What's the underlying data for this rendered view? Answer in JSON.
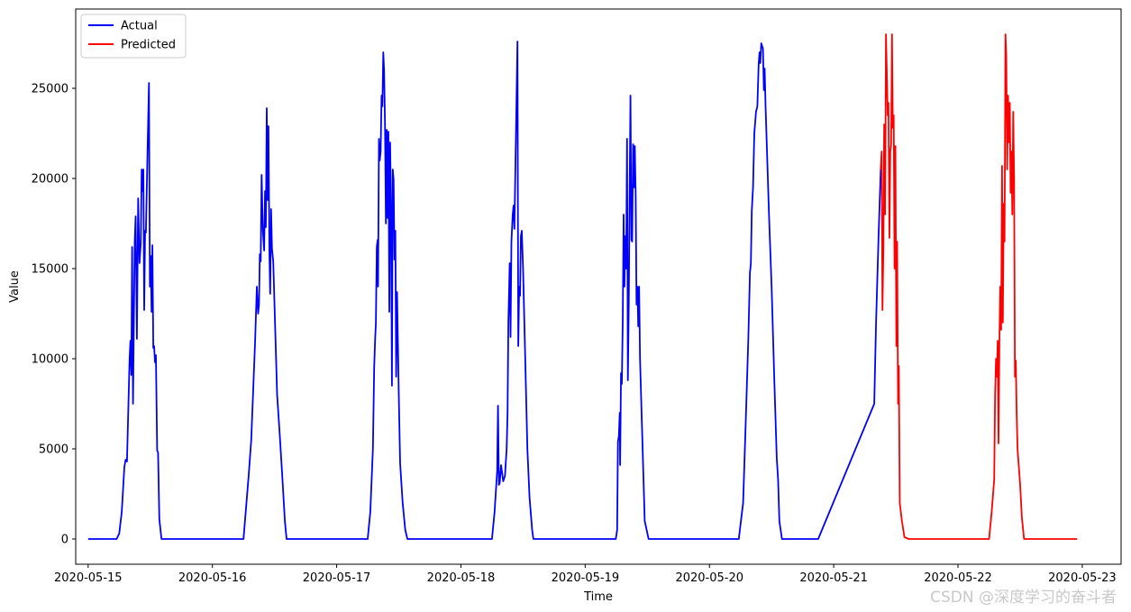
{
  "chart_data": {
    "type": "line",
    "xlabel": "Time",
    "ylabel": "Value",
    "x_ticks": [
      "2020-05-15",
      "2020-05-16",
      "2020-05-17",
      "2020-05-18",
      "2020-05-19",
      "2020-05-20",
      "2020-05-21",
      "2020-05-22",
      "2020-05-23"
    ],
    "y_ticks": [
      0,
      5000,
      10000,
      15000,
      20000,
      25000
    ],
    "xlim": [
      "2020-05-14T21:36",
      "2020-05-23T07:30"
    ],
    "ylim": [
      -1400,
      29400
    ],
    "grid": false,
    "legend": "top-left",
    "series": [
      {
        "name": "Actual",
        "color": "#0000ff",
        "points": [
          [
            "2020-05-15T00:00",
            0
          ],
          [
            "2020-05-15T05:30",
            0
          ],
          [
            "2020-05-15T06:00",
            300
          ],
          [
            "2020-05-15T06:30",
            1500
          ],
          [
            "2020-05-15T07:00",
            4000
          ],
          [
            "2020-05-15T07:15",
            4400
          ],
          [
            "2020-05-15T07:30",
            4300
          ],
          [
            "2020-05-15T08:00",
            10000
          ],
          [
            "2020-05-15T08:10",
            11000
          ],
          [
            "2020-05-15T08:20",
            9100
          ],
          [
            "2020-05-15T08:30",
            16200
          ],
          [
            "2020-05-15T08:40",
            7500
          ],
          [
            "2020-05-15T08:50",
            12000
          ],
          [
            "2020-05-15T09:00",
            16500
          ],
          [
            "2020-05-15T09:10",
            17900
          ],
          [
            "2020-05-15T09:25",
            11100
          ],
          [
            "2020-05-15T09:40",
            18900
          ],
          [
            "2020-05-15T09:55",
            15300
          ],
          [
            "2020-05-15T10:10",
            16400
          ],
          [
            "2020-05-15T10:20",
            20500
          ],
          [
            "2020-05-15T10:30",
            19300
          ],
          [
            "2020-05-15T10:40",
            20500
          ],
          [
            "2020-05-15T10:50",
            12700
          ],
          [
            "2020-05-15T11:00",
            17100
          ],
          [
            "2020-05-15T11:10",
            17000
          ],
          [
            "2020-05-15T11:30",
            22000
          ],
          [
            "2020-05-15T11:45",
            25300
          ],
          [
            "2020-05-15T11:55",
            14000
          ],
          [
            "2020-05-15T12:05",
            15700
          ],
          [
            "2020-05-15T12:15",
            12600
          ],
          [
            "2020-05-15T12:25",
            16300
          ],
          [
            "2020-05-15T12:35",
            10600
          ],
          [
            "2020-05-15T12:45",
            10700
          ],
          [
            "2020-05-15T12:55",
            9800
          ],
          [
            "2020-05-15T13:05",
            10200
          ],
          [
            "2020-05-15T13:20",
            4900
          ],
          [
            "2020-05-15T13:30",
            4800
          ],
          [
            "2020-05-15T13:45",
            1100
          ],
          [
            "2020-05-15T14:10",
            0
          ],
          [
            "2020-05-16T06:00",
            0
          ],
          [
            "2020-05-16T07:00",
            3500
          ],
          [
            "2020-05-16T07:30",
            5500
          ],
          [
            "2020-05-16T08:15",
            11000
          ],
          [
            "2020-05-16T08:35",
            14000
          ],
          [
            "2020-05-16T08:50",
            12500
          ],
          [
            "2020-05-16T09:00",
            13000
          ],
          [
            "2020-05-16T09:10",
            15800
          ],
          [
            "2020-05-16T09:20",
            15400
          ],
          [
            "2020-05-16T09:30",
            20200
          ],
          [
            "2020-05-16T09:45",
            17100
          ],
          [
            "2020-05-16T10:00",
            16000
          ],
          [
            "2020-05-16T10:10",
            19300
          ],
          [
            "2020-05-16T10:20",
            17300
          ],
          [
            "2020-05-16T10:30",
            23900
          ],
          [
            "2020-05-16T10:40",
            18800
          ],
          [
            "2020-05-16T10:50",
            22900
          ],
          [
            "2020-05-16T11:00",
            16000
          ],
          [
            "2020-05-16T11:10",
            13600
          ],
          [
            "2020-05-16T11:20",
            18300
          ],
          [
            "2020-05-16T11:30",
            16100
          ],
          [
            "2020-05-16T11:45",
            15400
          ],
          [
            "2020-05-16T12:30",
            8000
          ],
          [
            "2020-05-16T13:00",
            5800
          ],
          [
            "2020-05-16T13:30",
            3500
          ],
          [
            "2020-05-16T14:00",
            1000
          ],
          [
            "2020-05-16T14:20",
            0
          ],
          [
            "2020-05-17T06:00",
            0
          ],
          [
            "2020-05-17T06:30",
            1500
          ],
          [
            "2020-05-17T07:00",
            5000
          ],
          [
            "2020-05-17T07:15",
            9500
          ],
          [
            "2020-05-17T07:25",
            11000
          ],
          [
            "2020-05-17T07:35",
            12000
          ],
          [
            "2020-05-17T07:45",
            16200
          ],
          [
            "2020-05-17T07:55",
            16600
          ],
          [
            "2020-05-17T08:00",
            14000
          ],
          [
            "2020-05-17T08:10",
            22200
          ],
          [
            "2020-05-17T08:20",
            21000
          ],
          [
            "2020-05-17T08:30",
            21500
          ],
          [
            "2020-05-17T08:40",
            24600
          ],
          [
            "2020-05-17T08:50",
            24000
          ],
          [
            "2020-05-17T09:00",
            27000
          ],
          [
            "2020-05-17T09:10",
            26000
          ],
          [
            "2020-05-17T09:20",
            23000
          ],
          [
            "2020-05-17T09:30",
            17500
          ],
          [
            "2020-05-17T09:40",
            22700
          ],
          [
            "2020-05-17T09:50",
            17800
          ],
          [
            "2020-05-17T10:00",
            22600
          ],
          [
            "2020-05-17T10:10",
            12600
          ],
          [
            "2020-05-17T10:20",
            22000
          ],
          [
            "2020-05-17T10:30",
            18300
          ],
          [
            "2020-05-17T10:40",
            8500
          ],
          [
            "2020-05-17T10:50",
            20500
          ],
          [
            "2020-05-17T11:00",
            19900
          ],
          [
            "2020-05-17T11:10",
            15500
          ],
          [
            "2020-05-17T11:20",
            17100
          ],
          [
            "2020-05-17T11:30",
            9000
          ],
          [
            "2020-05-17T11:40",
            13700
          ],
          [
            "2020-05-17T12:00",
            8000
          ],
          [
            "2020-05-17T12:15",
            4200
          ],
          [
            "2020-05-17T12:45",
            2000
          ],
          [
            "2020-05-17T13:15",
            500
          ],
          [
            "2020-05-17T13:40",
            0
          ],
          [
            "2020-05-18T06:00",
            0
          ],
          [
            "2020-05-18T06:30",
            1500
          ],
          [
            "2020-05-18T07:00",
            3800
          ],
          [
            "2020-05-18T07:10",
            7400
          ],
          [
            "2020-05-18T07:20",
            3000
          ],
          [
            "2020-05-18T07:30",
            3100
          ],
          [
            "2020-05-18T07:45",
            4100
          ],
          [
            "2020-05-18T08:10",
            3200
          ],
          [
            "2020-05-18T08:30",
            3500
          ],
          [
            "2020-05-18T08:50",
            5000
          ],
          [
            "2020-05-18T09:00",
            7000
          ],
          [
            "2020-05-18T09:10",
            12000
          ],
          [
            "2020-05-18T09:25",
            15300
          ],
          [
            "2020-05-18T09:35",
            11200
          ],
          [
            "2020-05-18T09:45",
            16500
          ],
          [
            "2020-05-18T10:00",
            18000
          ],
          [
            "2020-05-18T10:10",
            18500
          ],
          [
            "2020-05-18T10:20",
            17200
          ],
          [
            "2020-05-18T10:40",
            23000
          ],
          [
            "2020-05-18T10:55",
            27600
          ],
          [
            "2020-05-18T11:05",
            10700
          ],
          [
            "2020-05-18T11:15",
            14000
          ],
          [
            "2020-05-18T11:25",
            13500
          ],
          [
            "2020-05-18T11:35",
            16800
          ],
          [
            "2020-05-18T11:45",
            17100
          ],
          [
            "2020-05-18T12:00",
            15000
          ],
          [
            "2020-05-18T12:30",
            9000
          ],
          [
            "2020-05-18T12:50",
            5000
          ],
          [
            "2020-05-18T13:15",
            2300
          ],
          [
            "2020-05-18T13:45",
            500
          ],
          [
            "2020-05-18T14:00",
            0
          ],
          [
            "2020-05-19T05:55",
            0
          ],
          [
            "2020-05-19T06:10",
            500
          ],
          [
            "2020-05-19T06:20",
            5400
          ],
          [
            "2020-05-19T06:30",
            5700
          ],
          [
            "2020-05-19T06:40",
            7000
          ],
          [
            "2020-05-19T06:45",
            4100
          ],
          [
            "2020-05-19T06:55",
            9200
          ],
          [
            "2020-05-19T07:05",
            8600
          ],
          [
            "2020-05-19T07:15",
            12000
          ],
          [
            "2020-05-19T07:25",
            18000
          ],
          [
            "2020-05-19T07:35",
            14000
          ],
          [
            "2020-05-19T07:45",
            16800
          ],
          [
            "2020-05-19T07:55",
            15000
          ],
          [
            "2020-05-19T08:05",
            22200
          ],
          [
            "2020-05-19T08:15",
            8800
          ],
          [
            "2020-05-19T08:25",
            13000
          ],
          [
            "2020-05-19T08:35",
            19500
          ],
          [
            "2020-05-19T08:45",
            24600
          ],
          [
            "2020-05-19T08:55",
            16600
          ],
          [
            "2020-05-19T09:05",
            16500
          ],
          [
            "2020-05-19T09:15",
            21900
          ],
          [
            "2020-05-19T09:25",
            19500
          ],
          [
            "2020-05-19T09:35",
            21800
          ],
          [
            "2020-05-19T09:45",
            19000
          ],
          [
            "2020-05-19T09:55",
            13000
          ],
          [
            "2020-05-19T10:05",
            14000
          ],
          [
            "2020-05-19T10:15",
            11800
          ],
          [
            "2020-05-19T10:25",
            14000
          ],
          [
            "2020-05-19T10:35",
            10000
          ],
          [
            "2020-05-19T11:00",
            6000
          ],
          [
            "2020-05-19T11:30",
            1000
          ],
          [
            "2020-05-19T12:15",
            0
          ],
          [
            "2020-05-20T05:40",
            0
          ],
          [
            "2020-05-20T06:00",
            800
          ],
          [
            "2020-05-20T06:30",
            2000
          ],
          [
            "2020-05-20T07:00",
            6500
          ],
          [
            "2020-05-20T07:30",
            11000
          ],
          [
            "2020-05-20T07:50",
            14800
          ],
          [
            "2020-05-20T08:00",
            15300
          ],
          [
            "2020-05-20T08:10",
            18200
          ],
          [
            "2020-05-20T08:25",
            19500
          ],
          [
            "2020-05-20T08:40",
            22500
          ],
          [
            "2020-05-20T09:00",
            23700
          ],
          [
            "2020-05-20T09:15",
            24000
          ],
          [
            "2020-05-20T09:30",
            26300
          ],
          [
            "2020-05-20T09:40",
            27000
          ],
          [
            "2020-05-20T09:50",
            26400
          ],
          [
            "2020-05-20T10:00",
            27500
          ],
          [
            "2020-05-20T10:20",
            27200
          ],
          [
            "2020-05-20T10:30",
            24900
          ],
          [
            "2020-05-20T10:40",
            26100
          ],
          [
            "2020-05-20T10:50",
            24000
          ],
          [
            "2020-05-20T11:30",
            18000
          ],
          [
            "2020-05-20T12:00",
            14000
          ],
          [
            "2020-05-20T12:30",
            9000
          ],
          [
            "2020-05-20T13:00",
            4500
          ],
          [
            "2020-05-20T13:15",
            3300
          ],
          [
            "2020-05-20T13:30",
            1000
          ],
          [
            "2020-05-20T14:00",
            0
          ],
          [
            "2020-05-20T21:00",
            0
          ],
          [
            "2020-05-21T07:50",
            7500
          ],
          [
            "2020-05-21T08:10",
            12000
          ],
          [
            "2020-05-21T08:40",
            16800
          ],
          [
            "2020-05-21T09:05",
            20500
          ]
        ]
      },
      {
        "name": "Predicted",
        "color": "#ff0000",
        "points": [
          [
            "2020-05-21T09:05",
            20500
          ],
          [
            "2020-05-21T09:15",
            21500
          ],
          [
            "2020-05-21T09:25",
            12700
          ],
          [
            "2020-05-21T09:35",
            16000
          ],
          [
            "2020-05-21T09:45",
            23000
          ],
          [
            "2020-05-21T09:55",
            18000
          ],
          [
            "2020-05-21T10:05",
            28000
          ],
          [
            "2020-05-21T10:15",
            26000
          ],
          [
            "2020-05-21T10:25",
            23500
          ],
          [
            "2020-05-21T10:35",
            24200
          ],
          [
            "2020-05-21T10:45",
            16700
          ],
          [
            "2020-05-21T10:55",
            21500
          ],
          [
            "2020-05-21T11:05",
            21900
          ],
          [
            "2020-05-21T11:15",
            28000
          ],
          [
            "2020-05-21T11:25",
            22800
          ],
          [
            "2020-05-21T11:35",
            23500
          ],
          [
            "2020-05-21T11:45",
            15000
          ],
          [
            "2020-05-21T11:55",
            21800
          ],
          [
            "2020-05-21T12:05",
            10700
          ],
          [
            "2020-05-21T12:15",
            16500
          ],
          [
            "2020-05-21T12:25",
            7500
          ],
          [
            "2020-05-21T12:35",
            9600
          ],
          [
            "2020-05-21T12:45",
            2000
          ],
          [
            "2020-05-21T13:10",
            1000
          ],
          [
            "2020-05-21T13:40",
            100
          ],
          [
            "2020-05-21T14:30",
            0
          ],
          [
            "2020-05-22T06:00",
            0
          ],
          [
            "2020-05-22T06:30",
            1500
          ],
          [
            "2020-05-22T07:00",
            3300
          ],
          [
            "2020-05-22T07:10",
            8000
          ],
          [
            "2020-05-22T07:20",
            10000
          ],
          [
            "2020-05-22T07:30",
            9000
          ],
          [
            "2020-05-22T07:40",
            11000
          ],
          [
            "2020-05-22T07:50",
            5300
          ],
          [
            "2020-05-22T08:00",
            11000
          ],
          [
            "2020-05-22T08:10",
            14000
          ],
          [
            "2020-05-22T08:20",
            11600
          ],
          [
            "2020-05-22T08:30",
            20700
          ],
          [
            "2020-05-22T08:40",
            12000
          ],
          [
            "2020-05-22T08:50",
            18600
          ],
          [
            "2020-05-22T09:00",
            16500
          ],
          [
            "2020-05-22T09:10",
            28000
          ],
          [
            "2020-05-22T09:20",
            26800
          ],
          [
            "2020-05-22T09:30",
            20500
          ],
          [
            "2020-05-22T09:40",
            24600
          ],
          [
            "2020-05-22T09:50",
            22000
          ],
          [
            "2020-05-22T10:00",
            24200
          ],
          [
            "2020-05-22T10:10",
            19200
          ],
          [
            "2020-05-22T10:20",
            21500
          ],
          [
            "2020-05-22T10:30",
            18000
          ],
          [
            "2020-05-22T10:40",
            23700
          ],
          [
            "2020-05-22T10:50",
            20000
          ],
          [
            "2020-05-22T11:00",
            9000
          ],
          [
            "2020-05-22T11:10",
            9900
          ],
          [
            "2020-05-22T11:20",
            7000
          ],
          [
            "2020-05-22T11:30",
            5000
          ],
          [
            "2020-05-22T12:00",
            3000
          ],
          [
            "2020-05-22T12:20",
            1200
          ],
          [
            "2020-05-22T12:45",
            0
          ],
          [
            "2020-05-22T23:00",
            0
          ]
        ]
      }
    ]
  },
  "watermark": "CSDN @深度学习的奋斗者"
}
